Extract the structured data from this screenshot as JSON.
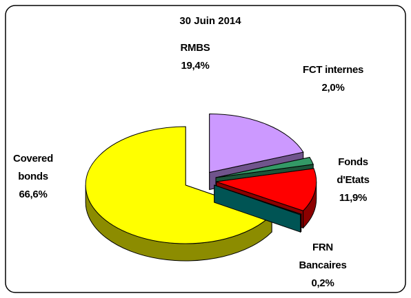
{
  "chart_data": {
    "type": "pie3d",
    "title": "30 Juin 2014",
    "categories": [
      "RMBS",
      "FCT internes",
      "Fonds d'Etats",
      "FRN Bancaires",
      "Covered bonds"
    ],
    "values": [
      19.4,
      2.0,
      11.9,
      0.2,
      66.6
    ],
    "value_labels": [
      "19,4%",
      "2,0%",
      "11,9%",
      "0,2%",
      "66,6%"
    ],
    "colors": [
      "#cc99ff",
      "#339966",
      "#ff0000",
      "#009999",
      "#ffff00"
    ]
  }
}
